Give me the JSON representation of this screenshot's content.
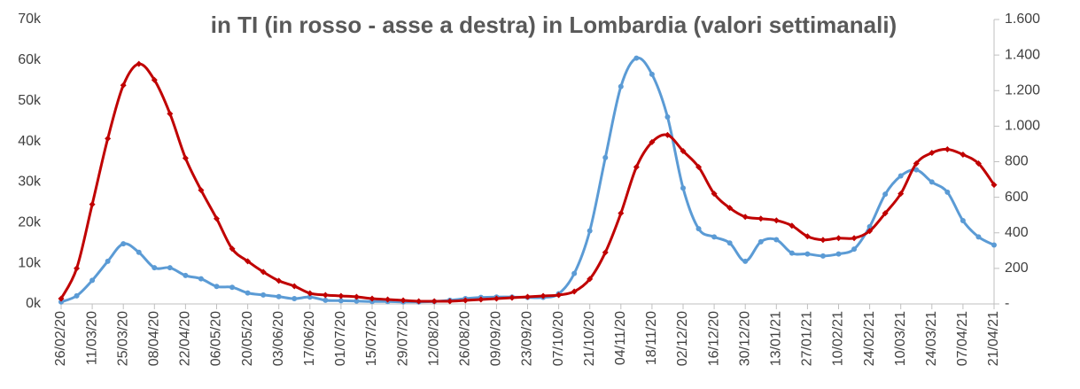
{
  "chart_data": {
    "type": "line",
    "title": "in TI (in rosso - asse a destra) in Lombardia (valori settimanali)",
    "categories": [
      "26/02/20",
      null,
      "11/03/20",
      null,
      "25/03/20",
      null,
      "08/04/20",
      null,
      "22/04/20",
      null,
      "06/05/20",
      null,
      "20/05/20",
      null,
      "03/06/20",
      null,
      "17/06/20",
      null,
      "01/07/20",
      null,
      "15/07/20",
      null,
      "29/07/20",
      null,
      "12/08/20",
      null,
      "26/08/20",
      null,
      "09/09/20",
      null,
      "23/09/20",
      null,
      "07/10/20",
      null,
      "21/10/20",
      null,
      "04/11/20",
      null,
      "18/11/20",
      null,
      "02/12/20",
      null,
      "16/12/20",
      null,
      "30/12/20",
      null,
      "13/01/21",
      null,
      "27/01/21",
      null,
      "10/02/21",
      null,
      "24/02/21",
      null,
      "10/03/21",
      null,
      "24/03/21",
      null,
      "07/04/21",
      null,
      "21/04/21"
    ],
    "series": [
      {
        "color": "#5b9bd5",
        "values": [
          500,
          2000,
          5800,
          10500,
          14800,
          12700,
          8900,
          8900,
          7000,
          6200,
          4300,
          4100,
          2700,
          2200,
          1800,
          1300,
          1700,
          900,
          800,
          700,
          600,
          600,
          500,
          500,
          600,
          900,
          1300,
          1600,
          1700,
          1700,
          1600,
          1600,
          2500,
          7500,
          18000,
          36000,
          53500,
          60500,
          56500,
          46000,
          28500,
          18500,
          16500,
          15000,
          10500,
          15300,
          15800,
          12500,
          12300,
          11800,
          12300,
          13500,
          19000,
          27000,
          31500,
          33000,
          30000,
          27500,
          20500,
          16500,
          14500
        ]
      },
      {
        "color": "#c00000",
        "axis": "y2",
        "values": [
          30,
          200,
          560,
          930,
          1230,
          1350,
          1260,
          1070,
          820,
          640,
          480,
          310,
          240,
          180,
          130,
          100,
          60,
          50,
          45,
          40,
          30,
          25,
          20,
          15,
          15,
          15,
          20,
          25,
          30,
          35,
          40,
          45,
          50,
          70,
          140,
          290,
          510,
          770,
          910,
          950,
          860,
          770,
          620,
          540,
          490,
          480,
          470,
          440,
          380,
          360,
          370,
          370,
          410,
          510,
          620,
          790,
          850,
          870,
          840,
          790,
          670
        ]
      }
    ],
    "ylim": [
      0,
      70000
    ],
    "yticks": [
      {
        "value": 0,
        "label": "0k"
      },
      {
        "value": 10000,
        "label": "10k"
      },
      {
        "value": 20000,
        "label": "20k"
      },
      {
        "value": 30000,
        "label": "30k"
      },
      {
        "value": 40000,
        "label": "40k"
      },
      {
        "value": 50000,
        "label": "50k"
      },
      {
        "value": 60000,
        "label": "60k"
      },
      {
        "value": 70000,
        "label": "70k"
      }
    ],
    "y2lim": [
      0,
      1600
    ],
    "y2ticks": [
      {
        "value": 0,
        "label": "-"
      },
      200,
      400,
      600,
      800,
      {
        "value": 1000,
        "label": "1.000"
      },
      {
        "value": 1200,
        "label": "1.200"
      },
      {
        "value": 1400,
        "label": "1.400"
      },
      {
        "value": 1600,
        "label": "1.600"
      }
    ]
  }
}
